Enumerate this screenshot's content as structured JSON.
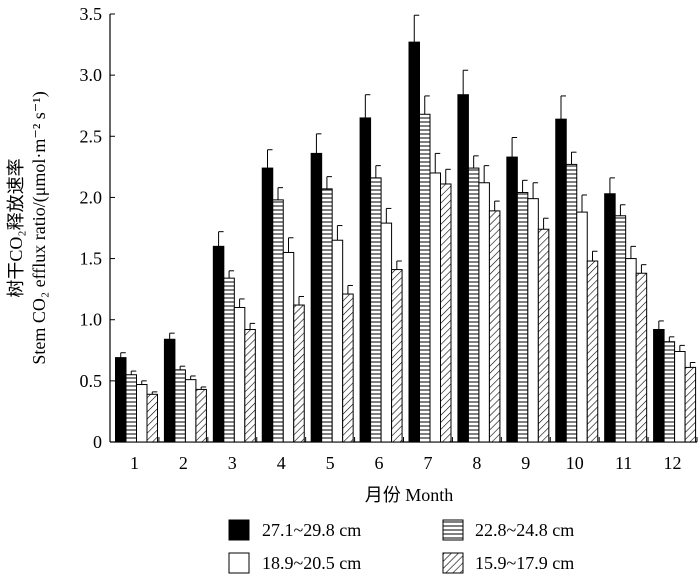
{
  "chart_data": {
    "type": "bar",
    "title": "",
    "xlabel": "月份 Month",
    "ylabel_line1": "树干CO₂释放速率",
    "ylabel_line2": "Stem CO₂ efflux ratio/(μmol·m⁻² s⁻¹)",
    "ylim": [
      0,
      3.5
    ],
    "yticks": [
      "0",
      "0.5",
      "1.0",
      "1.5",
      "2.0",
      "2.5",
      "3.0",
      "3.5"
    ],
    "categories": [
      "1",
      "2",
      "3",
      "4",
      "5",
      "6",
      "7",
      "8",
      "9",
      "10",
      "11",
      "12"
    ],
    "series": [
      {
        "name": "27.1~29.8 cm",
        "pattern": "solid",
        "values": [
          0.69,
          0.84,
          1.6,
          2.24,
          2.36,
          2.65,
          3.27,
          2.84,
          2.33,
          2.64,
          2.03,
          0.92
        ],
        "errors": [
          0.04,
          0.05,
          0.12,
          0.15,
          0.16,
          0.19,
          0.22,
          0.2,
          0.16,
          0.19,
          0.13,
          0.07
        ]
      },
      {
        "name": "22.8~24.8 cm",
        "pattern": "horizontal",
        "values": [
          0.55,
          0.59,
          1.34,
          1.98,
          2.07,
          2.16,
          2.68,
          2.24,
          2.04,
          2.27,
          1.85,
          0.82
        ],
        "errors": [
          0.03,
          0.03,
          0.06,
          0.1,
          0.1,
          0.1,
          0.15,
          0.1,
          0.1,
          0.1,
          0.09,
          0.04
        ]
      },
      {
        "name": "18.9~20.5 cm",
        "pattern": "hollow",
        "values": [
          0.47,
          0.51,
          1.1,
          1.55,
          1.65,
          1.79,
          2.2,
          2.12,
          1.99,
          1.88,
          1.5,
          0.74
        ],
        "errors": [
          0.03,
          0.03,
          0.07,
          0.12,
          0.12,
          0.12,
          0.16,
          0.14,
          0.13,
          0.14,
          0.1,
          0.05
        ]
      },
      {
        "name": "15.9~17.9 cm",
        "pattern": "diagonal",
        "values": [
          0.39,
          0.43,
          0.92,
          1.12,
          1.21,
          1.41,
          2.11,
          1.89,
          1.74,
          1.48,
          1.38,
          0.61
        ],
        "errors": [
          0.02,
          0.02,
          0.05,
          0.07,
          0.07,
          0.07,
          0.12,
          0.08,
          0.09,
          0.08,
          0.07,
          0.04
        ]
      }
    ],
    "legend_position": "bottom"
  }
}
